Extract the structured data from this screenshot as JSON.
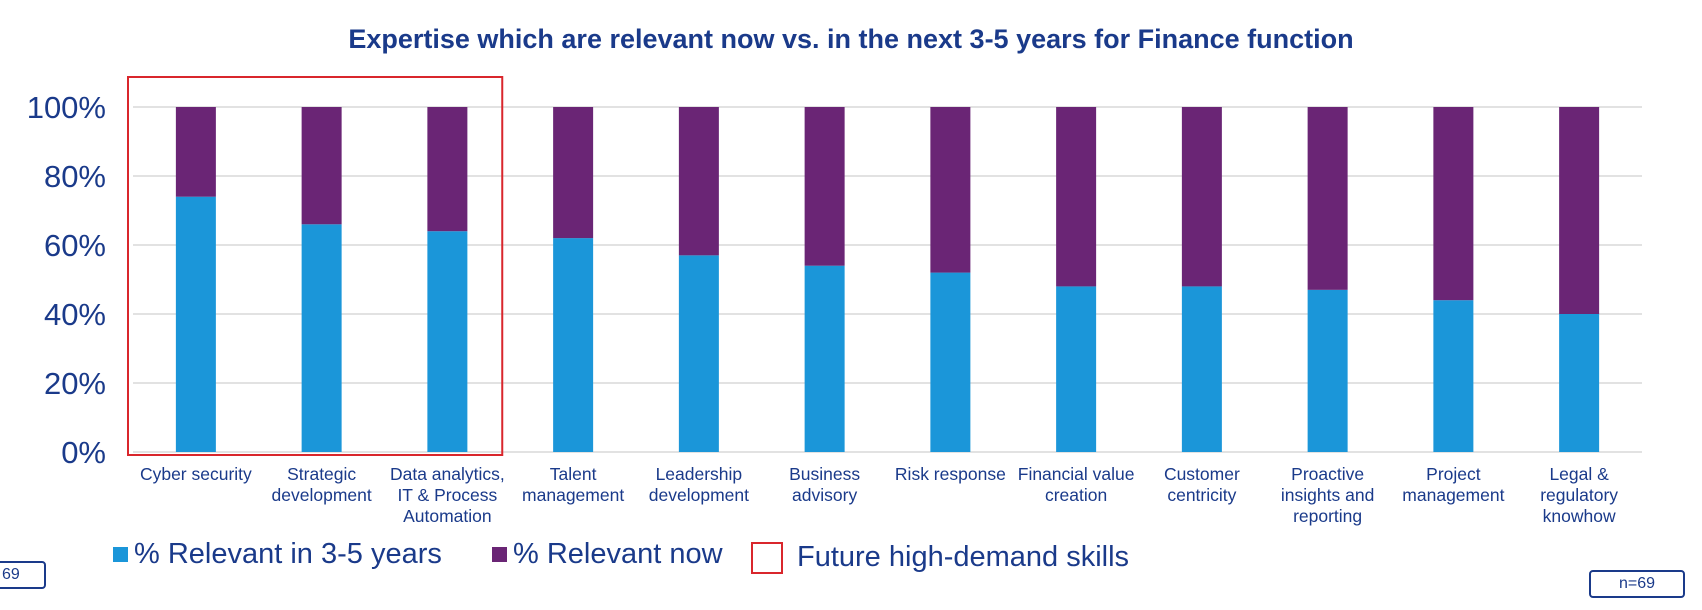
{
  "chart_data": {
    "type": "bar",
    "stacked": true,
    "title": "Expertise which are relevant now vs. in the next 3-5 years for Finance function",
    "categories": [
      [
        "Cyber security"
      ],
      [
        "Strategic",
        "development"
      ],
      [
        "Data analytics,",
        "IT & Process",
        "Automation"
      ],
      [
        "Talent",
        "management"
      ],
      [
        "Leadership",
        "development"
      ],
      [
        "Business",
        "advisory"
      ],
      [
        "Risk response"
      ],
      [
        "Financial value",
        "creation"
      ],
      [
        "Customer",
        "centricity"
      ],
      [
        "Proactive",
        "insights and",
        "reporting"
      ],
      [
        "Project",
        "management"
      ],
      [
        "Legal &",
        "regulatory",
        "knowhow"
      ]
    ],
    "series": [
      {
        "name": "% Relevant in 3-5 years",
        "color": "#1b96d9",
        "values": [
          74,
          66,
          64,
          62,
          57,
          54,
          52,
          48,
          48,
          47,
          44,
          40
        ]
      },
      {
        "name": "% Relevant now",
        "color": "#6a2575",
        "values": [
          26,
          34,
          36,
          38,
          43,
          46,
          48,
          52,
          52,
          53,
          56,
          60
        ]
      }
    ],
    "highlight": {
      "label": "Future high-demand skills",
      "categories": [
        0,
        1,
        2
      ],
      "color": "#d9262c"
    },
    "y_ticks": [
      "0%",
      "20%",
      "40%",
      "60%",
      "80%",
      "100%"
    ],
    "ylim": [
      0,
      100
    ],
    "grid": true,
    "legend_position": "bottom-left"
  },
  "legend": {
    "series1": "% Relevant in 3-5 years",
    "series2": "% Relevant now",
    "highlight": "Future high-demand skills"
  },
  "badges": {
    "left": "69",
    "right": "n=69"
  }
}
